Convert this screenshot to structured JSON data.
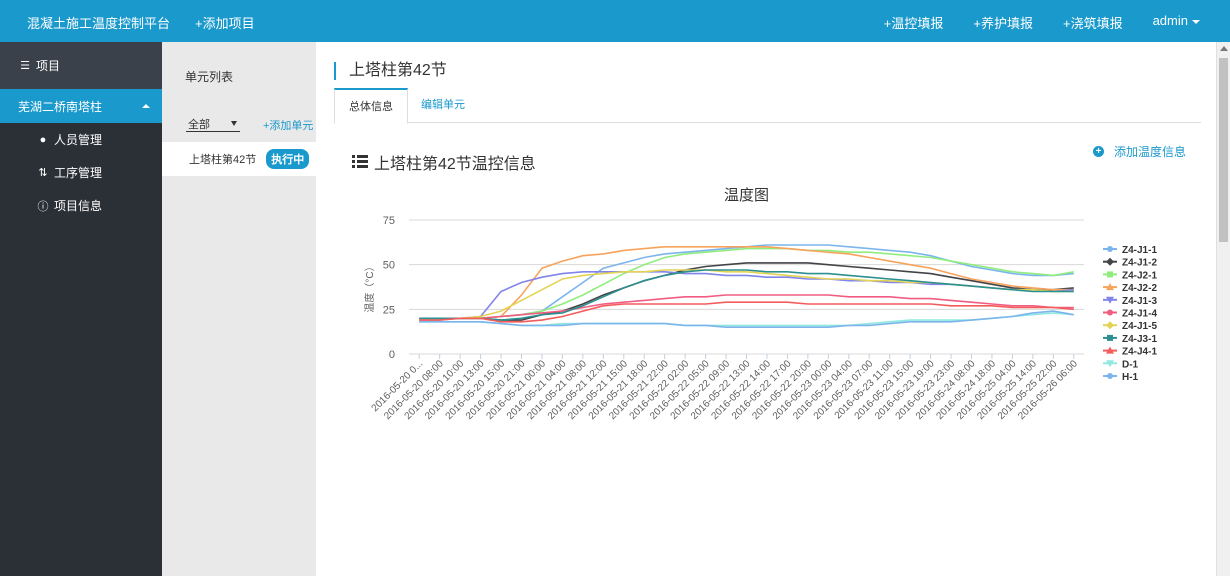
{
  "topbar": {
    "brand": "混凝土施工温度控制平台",
    "add_project": "+添加项目",
    "links": [
      "+温控填报",
      "+养护填报",
      "+浇筑填报"
    ],
    "user": "admin"
  },
  "sidebar": {
    "head": "项目",
    "project": "芜湖二桥南塔柱",
    "items": [
      {
        "label": "人员管理",
        "icon": "user-icon"
      },
      {
        "label": "工序管理",
        "icon": "sort-icon"
      },
      {
        "label": "项目信息",
        "icon": "info-icon"
      }
    ]
  },
  "unit_list": {
    "title": "单元列表",
    "filter": "全部",
    "add_unit": "+添加单元",
    "units": [
      {
        "name": "上塔柱第42节",
        "status": "执行中"
      }
    ]
  },
  "main": {
    "page_title": "上塔柱第42节",
    "tabs": [
      "总体信息",
      "编辑单元"
    ],
    "section_title": "上塔柱第42节温控信息",
    "add_temp": "添加温度信息"
  },
  "chart_data": {
    "type": "line",
    "title": "温度图",
    "ylabel": "温度（°C）",
    "ylim": [
      0,
      75
    ],
    "yticks": [
      0,
      25,
      50,
      75
    ],
    "grid": true,
    "legend": "right",
    "categories": [
      "2016-05-20 0...",
      "2016-05-20 08:00",
      "2016-05-20 10:00",
      "2016-05-20 13:00",
      "2016-05-20 15:00",
      "2016-05-20 21:00",
      "2016-05-21 00:00",
      "2016-05-21 04:00",
      "2016-05-21 08:00",
      "2016-05-21 12:00",
      "2016-05-21 15:00",
      "2016-05-21 18:00",
      "2016-05-21 22:00",
      "2016-05-22 02:00",
      "2016-05-22 05:00",
      "2016-05-22 09:00",
      "2016-05-22 13:00",
      "2016-05-22 14:00",
      "2016-05-22 17:00",
      "2016-05-22 20:00",
      "2016-05-23 00:00",
      "2016-05-23 04:00",
      "2016-05-23 07:00",
      "2016-05-23 11:00",
      "2016-05-23 15:00",
      "2016-05-23 19:00",
      "2016-05-23 23:00",
      "2016-05-24 08:00",
      "2016-05-24 18:00",
      "2016-05-25 04:00",
      "2016-05-25 14:00",
      "2016-05-25 22:00",
      "2016-05-26 06:00"
    ],
    "series": [
      {
        "name": "Z4-J1-1",
        "color": "#7cb5ec",
        "marker": "circle",
        "values": [
          19,
          19,
          20,
          20,
          21,
          22,
          24,
          32,
          40,
          48,
          51,
          54,
          56,
          57,
          58,
          59,
          60,
          61,
          61,
          61,
          61,
          60,
          59,
          58,
          57,
          55,
          52,
          49,
          47,
          45,
          44,
          44,
          45
        ]
      },
      {
        "name": "Z4-J1-2",
        "color": "#434348",
        "marker": "diamond",
        "values": [
          20,
          20,
          20,
          20,
          19,
          19,
          22,
          24,
          28,
          33,
          37,
          41,
          44,
          47,
          49,
          50,
          51,
          51,
          51,
          51,
          50,
          49,
          48,
          47,
          46,
          45,
          43,
          41,
          39,
          37,
          36,
          36,
          37
        ]
      },
      {
        "name": "Z4-J2-1",
        "color": "#90ed7d",
        "marker": "square",
        "values": [
          20,
          20,
          20,
          20,
          21,
          22,
          24,
          28,
          33,
          39,
          45,
          50,
          54,
          56,
          57,
          58,
          59,
          59,
          59,
          58,
          58,
          57,
          57,
          56,
          55,
          54,
          52,
          50,
          48,
          46,
          45,
          44,
          46
        ]
      },
      {
        "name": "Z4-J2-2",
        "color": "#f7a35c",
        "marker": "triangle",
        "values": [
          20,
          20,
          20,
          20,
          21,
          33,
          48,
          52,
          55,
          56,
          58,
          59,
          60,
          60,
          60,
          60,
          60,
          60,
          59,
          58,
          57,
          56,
          54,
          52,
          50,
          48,
          45,
          42,
          40,
          38,
          37,
          36,
          36
        ]
      },
      {
        "name": "Z4-J1-3",
        "color": "#8085e9",
        "marker": "triangle-down",
        "values": [
          20,
          20,
          20,
          21,
          35,
          40,
          43,
          45,
          46,
          46,
          46,
          46,
          46,
          45,
          45,
          44,
          44,
          43,
          43,
          42,
          42,
          41,
          41,
          40,
          40,
          39,
          39,
          38,
          37,
          36,
          36,
          35,
          36
        ]
      },
      {
        "name": "Z4-J1-4",
        "color": "#f15c80",
        "marker": "circle",
        "values": [
          20,
          20,
          20,
          20,
          21,
          22,
          23,
          24,
          26,
          28,
          29,
          30,
          31,
          32,
          32,
          33,
          33,
          33,
          33,
          33,
          33,
          32,
          32,
          32,
          31,
          31,
          30,
          29,
          28,
          27,
          27,
          26,
          26
        ]
      },
      {
        "name": "Z4-J1-5",
        "color": "#e4d354",
        "marker": "diamond",
        "values": [
          20,
          20,
          20,
          21,
          24,
          30,
          36,
          42,
          44,
          45,
          46,
          46,
          47,
          47,
          47,
          46,
          46,
          45,
          44,
          43,
          42,
          42,
          41,
          41,
          40,
          40,
          39,
          38,
          37,
          36,
          36,
          35,
          35
        ]
      },
      {
        "name": "Z4-J3-1",
        "color": "#2b908f",
        "marker": "square",
        "values": [
          20,
          20,
          20,
          20,
          19,
          20,
          22,
          23,
          27,
          32,
          37,
          41,
          44,
          46,
          47,
          47,
          47,
          46,
          46,
          45,
          45,
          44,
          43,
          42,
          41,
          40,
          39,
          38,
          37,
          36,
          35,
          35,
          35
        ]
      },
      {
        "name": "Z4-J4-1",
        "color": "#f45b5b",
        "marker": "triangle",
        "values": [
          19,
          19,
          20,
          20,
          18,
          18,
          19,
          21,
          24,
          27,
          28,
          28,
          28,
          28,
          28,
          29,
          29,
          29,
          29,
          28,
          28,
          28,
          28,
          28,
          28,
          28,
          27,
          27,
          27,
          26,
          26,
          26,
          25
        ]
      },
      {
        "name": "D-1",
        "color": "#91e8e1",
        "marker": "triangle-down",
        "values": [
          18,
          18,
          18,
          18,
          17,
          16,
          16,
          17,
          17,
          17,
          17,
          17,
          17,
          16,
          16,
          16,
          16,
          16,
          16,
          16,
          16,
          16,
          17,
          18,
          19,
          19,
          19,
          19,
          20,
          21,
          22,
          23,
          22
        ]
      },
      {
        "name": "H-1",
        "color": "#7cb5ec",
        "marker": "circle",
        "values": [
          18,
          18,
          18,
          18,
          17,
          16,
          16,
          16,
          17,
          17,
          17,
          17,
          17,
          16,
          16,
          15,
          15,
          15,
          15,
          15,
          15,
          16,
          16,
          17,
          18,
          18,
          18,
          19,
          20,
          21,
          23,
          24,
          22
        ]
      }
    ]
  }
}
